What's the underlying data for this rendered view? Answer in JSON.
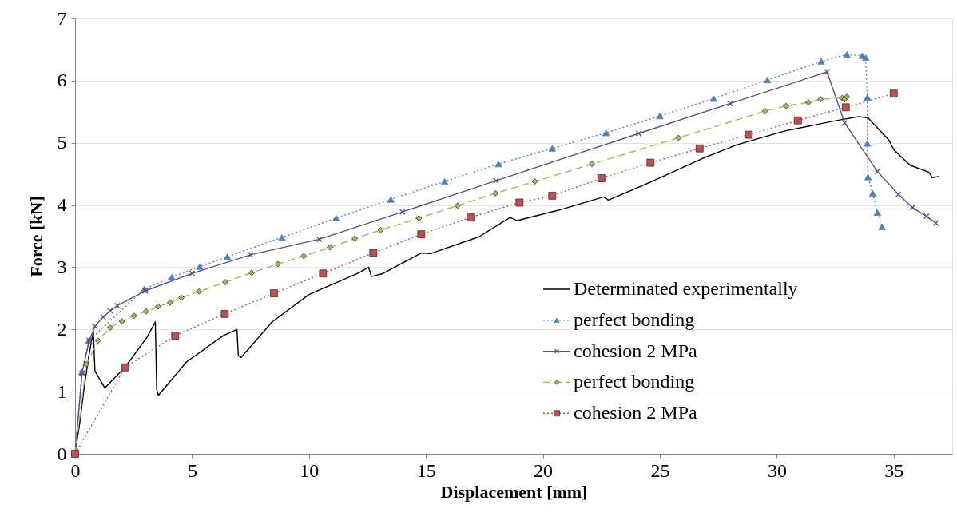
{
  "chart_data": {
    "type": "line",
    "xlabel": "Displacement [mm]",
    "ylabel": "Force [kN]",
    "xlim": [
      0,
      37.5
    ],
    "ylim": [
      0,
      7
    ],
    "xticks": [
      0,
      5,
      10,
      15,
      20,
      25,
      30,
      35
    ],
    "yticks": [
      0,
      1,
      2,
      3,
      4,
      5,
      6,
      7
    ],
    "grid": "y",
    "legend": "bottom right",
    "series": [
      {
        "name": "Determinated experimentally",
        "color": "#000000",
        "marker": "none",
        "line_style": "solid",
        "x": [
          0,
          0.2,
          0.4,
          0.6,
          0.78,
          0.85,
          1.27,
          2.15,
          3.07,
          3.43,
          3.49,
          3.56,
          4.77,
          6.33,
          6.92,
          6.98,
          7.1,
          8.42,
          10.0,
          12.14,
          12.55,
          12.67,
          13.17,
          14.8,
          15.2,
          17.27,
          18.6,
          18.9,
          20.7,
          22.6,
          22.8,
          24.67,
          26.9,
          28.3,
          30.35,
          31.26,
          32.6,
          33.5,
          33.9,
          34.3,
          34.8,
          35.0,
          35.7,
          36.5,
          36.65,
          36.95
        ],
        "values": [
          0,
          0.5,
          1.1,
          1.6,
          1.97,
          1.33,
          1.06,
          1.4,
          1.87,
          2.12,
          1.03,
          0.94,
          1.48,
          1.9,
          2.0,
          1.58,
          1.55,
          2.12,
          2.56,
          2.91,
          3.0,
          2.85,
          2.9,
          3.23,
          3.22,
          3.49,
          3.8,
          3.75,
          3.92,
          4.13,
          4.08,
          4.38,
          4.76,
          4.97,
          5.19,
          5.26,
          5.36,
          5.42,
          5.4,
          5.24,
          5.04,
          4.89,
          4.64,
          4.53,
          4.44,
          4.46
        ]
      },
      {
        "name": "perfect bonding",
        "color": "#4f81bd",
        "marker": "triangle",
        "line_style": "dotted",
        "x": [
          0,
          0.29,
          0.59,
          2.96,
          4.14,
          5.33,
          6.51,
          8.84,
          11.16,
          13.5,
          15.8,
          18.1,
          20.4,
          22.7,
          25.0,
          27.3,
          29.6,
          31.9,
          33.0,
          33.65,
          33.8,
          33.87,
          33.87,
          33.9,
          34.1,
          34.3,
          34.5
        ],
        "values": [
          0,
          1.32,
          1.82,
          2.65,
          2.84,
          3.01,
          3.17,
          3.48,
          3.79,
          4.09,
          4.38,
          4.66,
          4.91,
          5.16,
          5.43,
          5.71,
          6.01,
          6.31,
          6.42,
          6.4,
          6.37,
          5.73,
          4.99,
          4.45,
          4.19,
          3.88,
          3.65
        ]
      },
      {
        "name": "cohesion 2 MPa",
        "color": "#5b4f8f",
        "marker": "cross",
        "line_style": "solid",
        "x": [
          0,
          0.3,
          0.6,
          0.85,
          1.2,
          1.5,
          1.8,
          3.0,
          5.0,
          7.5,
          10.44,
          14.0,
          18.0,
          24.1,
          28.0,
          32.15,
          32.9,
          34.3,
          35.2,
          35.8,
          36.4,
          36.8
        ],
        "values": [
          0,
          1.3,
          1.82,
          2.05,
          2.2,
          2.3,
          2.38,
          2.62,
          2.9,
          3.2,
          3.45,
          3.89,
          4.39,
          5.15,
          5.63,
          6.14,
          5.32,
          4.54,
          4.17,
          3.96,
          3.82,
          3.71
        ]
      },
      {
        "name": "perfect bonding",
        "color": "#9bbb59",
        "marker": "diamond",
        "line_style": "dashed",
        "x": [
          0,
          0.48,
          0.98,
          1.5,
          2.0,
          2.52,
          3.03,
          3.55,
          4.06,
          4.54,
          5.3,
          6.42,
          7.55,
          8.67,
          9.78,
          10.9,
          11.96,
          13.07,
          14.7,
          16.35,
          17.98,
          19.66,
          22.1,
          25.8,
          29.5,
          30.4,
          31.35,
          31.87,
          32.8,
          32.9,
          33.0
        ],
        "values": [
          0,
          1.44,
          1.82,
          2.03,
          2.13,
          2.22,
          2.29,
          2.37,
          2.43,
          2.51,
          2.61,
          2.76,
          2.91,
          3.05,
          3.18,
          3.32,
          3.46,
          3.6,
          3.79,
          3.99,
          4.19,
          4.38,
          4.66,
          5.08,
          5.51,
          5.59,
          5.65,
          5.7,
          5.72,
          5.7,
          5.74
        ]
      },
      {
        "name": "cohesion 2 MPa",
        "color": "#c0504d",
        "marker": "square",
        "line_style": "dotted",
        "x": [
          0,
          2.13,
          4.28,
          6.4,
          8.5,
          10.6,
          12.75,
          14.8,
          16.9,
          19.0,
          20.4,
          22.5,
          24.6,
          26.7,
          28.8,
          30.9,
          32.95,
          35.0
        ],
        "values": [
          0,
          1.39,
          1.9,
          2.25,
          2.58,
          2.9,
          3.23,
          3.53,
          3.8,
          4.04,
          4.15,
          4.43,
          4.68,
          4.91,
          5.13,
          5.36,
          5.57,
          5.79
        ]
      }
    ]
  }
}
